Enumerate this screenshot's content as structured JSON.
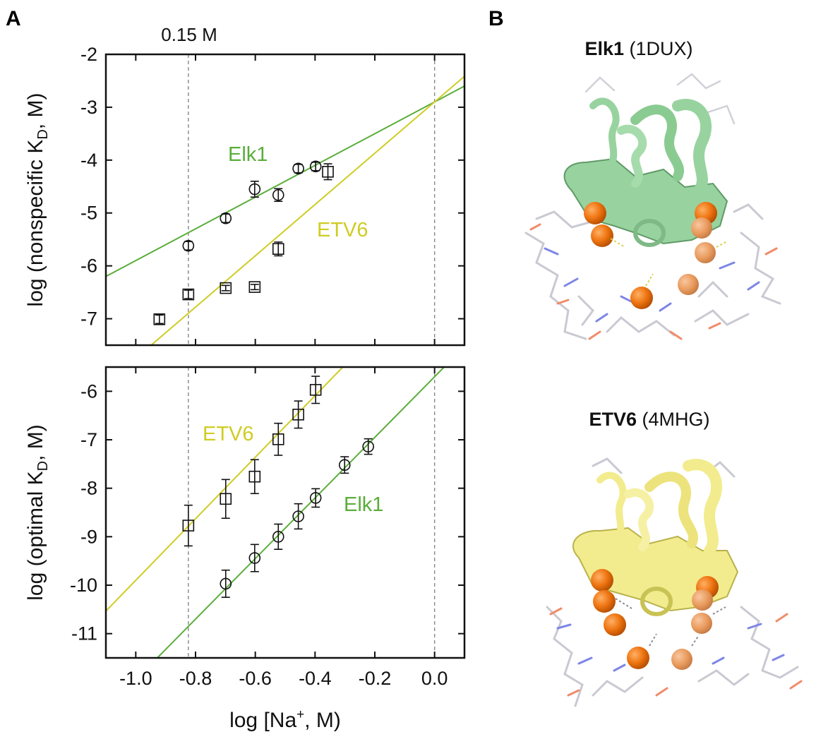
{
  "figure": {
    "panel_a_label": "A",
    "panel_b_label": "B"
  },
  "colors": {
    "elk1": "#5aad3a",
    "etv6": "#cfcc24",
    "elk1_ribbon": "#98d39f",
    "etv6_ribbon": "#f2ec8e",
    "ion": "#f07a12",
    "axis": "#111111",
    "refline": "#888888"
  },
  "chart_data": [
    {
      "type": "scatter",
      "panel": "A-top",
      "reference_label": "0.15 M",
      "reference_lines_x": [
        -0.824,
        0.0
      ],
      "xlim": [
        -1.1,
        0.1
      ],
      "ylim": [
        -7.5,
        -2
      ],
      "xticks": [
        -1.0,
        -0.8,
        -0.6,
        -0.4,
        -0.2,
        0.0
      ],
      "yticks": [
        -2,
        -3,
        -4,
        -5,
        -6,
        -7
      ],
      "ytick_labels": [
        "-2",
        "-3",
        "-4",
        "-5",
        "-6",
        "-7"
      ],
      "ylabel": "log (nonspecific K",
      "ylabel_sub": "D",
      "ylabel_tail": ", M)",
      "series": [
        {
          "name": "Elk1",
          "marker": "circle",
          "points": [
            {
              "x": -0.824,
              "y": -5.62,
              "err": 0.08
            },
            {
              "x": -0.699,
              "y": -5.1,
              "err": 0.08
            },
            {
              "x": -0.602,
              "y": -4.55,
              "err": 0.15
            },
            {
              "x": -0.523,
              "y": -4.66,
              "err": 0.12
            },
            {
              "x": -0.456,
              "y": -4.16,
              "err": 0.08
            },
            {
              "x": -0.398,
              "y": -4.12,
              "err": 0.08
            }
          ],
          "fit": {
            "slope": 3.0,
            "intercept": -2.9
          }
        },
        {
          "name": "ETV6",
          "marker": "square",
          "points": [
            {
              "x": -0.921,
              "y": -7.01,
              "err": 0.08
            },
            {
              "x": -0.824,
              "y": -6.54,
              "err": 0.08
            },
            {
              "x": -0.699,
              "y": -6.42,
              "err": 0.05
            },
            {
              "x": -0.602,
              "y": -6.4,
              "err": 0.05
            },
            {
              "x": -0.523,
              "y": -5.68,
              "err": 0.13
            },
            {
              "x": -0.357,
              "y": -4.22,
              "err": 0.15
            }
          ],
          "fit": {
            "slope": 4.85,
            "intercept": -2.9
          }
        }
      ]
    },
    {
      "type": "scatter",
      "panel": "A-bottom",
      "reference_lines_x": [
        -0.824,
        0.0
      ],
      "xlim": [
        -1.1,
        0.1
      ],
      "ylim": [
        -11.5,
        -5.5
      ],
      "xticks": [
        -1.0,
        -0.8,
        -0.6,
        -0.4,
        -0.2,
        0.0
      ],
      "xtick_labels": [
        "-1.0",
        "-0.8",
        "-0.6",
        "-0.4",
        "-0.2",
        "0.0"
      ],
      "yticks": [
        -6,
        -7,
        -8,
        -9,
        -10,
        -11
      ],
      "ytick_labels": [
        "-6",
        "-7",
        "-8",
        "-9",
        "-10",
        "-11"
      ],
      "ylabel": "log (optimal K",
      "ylabel_sub": "D",
      "ylabel_tail": ", M)",
      "xlabel": "log [Na",
      "xlabel_sup": "+",
      "xlabel_tail": ", M)",
      "series": [
        {
          "name": "ETV6",
          "marker": "square",
          "points": [
            {
              "x": -0.824,
              "y": -8.77,
              "err": 0.42
            },
            {
              "x": -0.699,
              "y": -8.22,
              "err": 0.4
            },
            {
              "x": -0.602,
              "y": -7.76,
              "err": 0.35
            },
            {
              "x": -0.523,
              "y": -6.99,
              "err": 0.33
            },
            {
              "x": -0.456,
              "y": -6.48,
              "err": 0.28
            },
            {
              "x": -0.398,
              "y": -5.97,
              "err": 0.28
            }
          ],
          "fit": {
            "slope": 6.35,
            "intercept": -3.55
          }
        },
        {
          "name": "Elk1",
          "marker": "circle",
          "points": [
            {
              "x": -0.699,
              "y": -9.97,
              "err": 0.28
            },
            {
              "x": -0.602,
              "y": -9.44,
              "err": 0.28
            },
            {
              "x": -0.523,
              "y": -9.0,
              "err": 0.26
            },
            {
              "x": -0.456,
              "y": -8.58,
              "err": 0.26
            },
            {
              "x": -0.398,
              "y": -8.2,
              "err": 0.19
            },
            {
              "x": -0.301,
              "y": -7.52,
              "err": 0.17
            },
            {
              "x": -0.222,
              "y": -7.14,
              "err": 0.16
            }
          ],
          "fit": {
            "slope": 6.25,
            "intercept": -5.7
          }
        }
      ]
    }
  ],
  "structures": [
    {
      "name": "Elk1",
      "pdb": " (1DUX)"
    },
    {
      "name": "ETV6",
      "pdb": " (4MHG)"
    }
  ]
}
